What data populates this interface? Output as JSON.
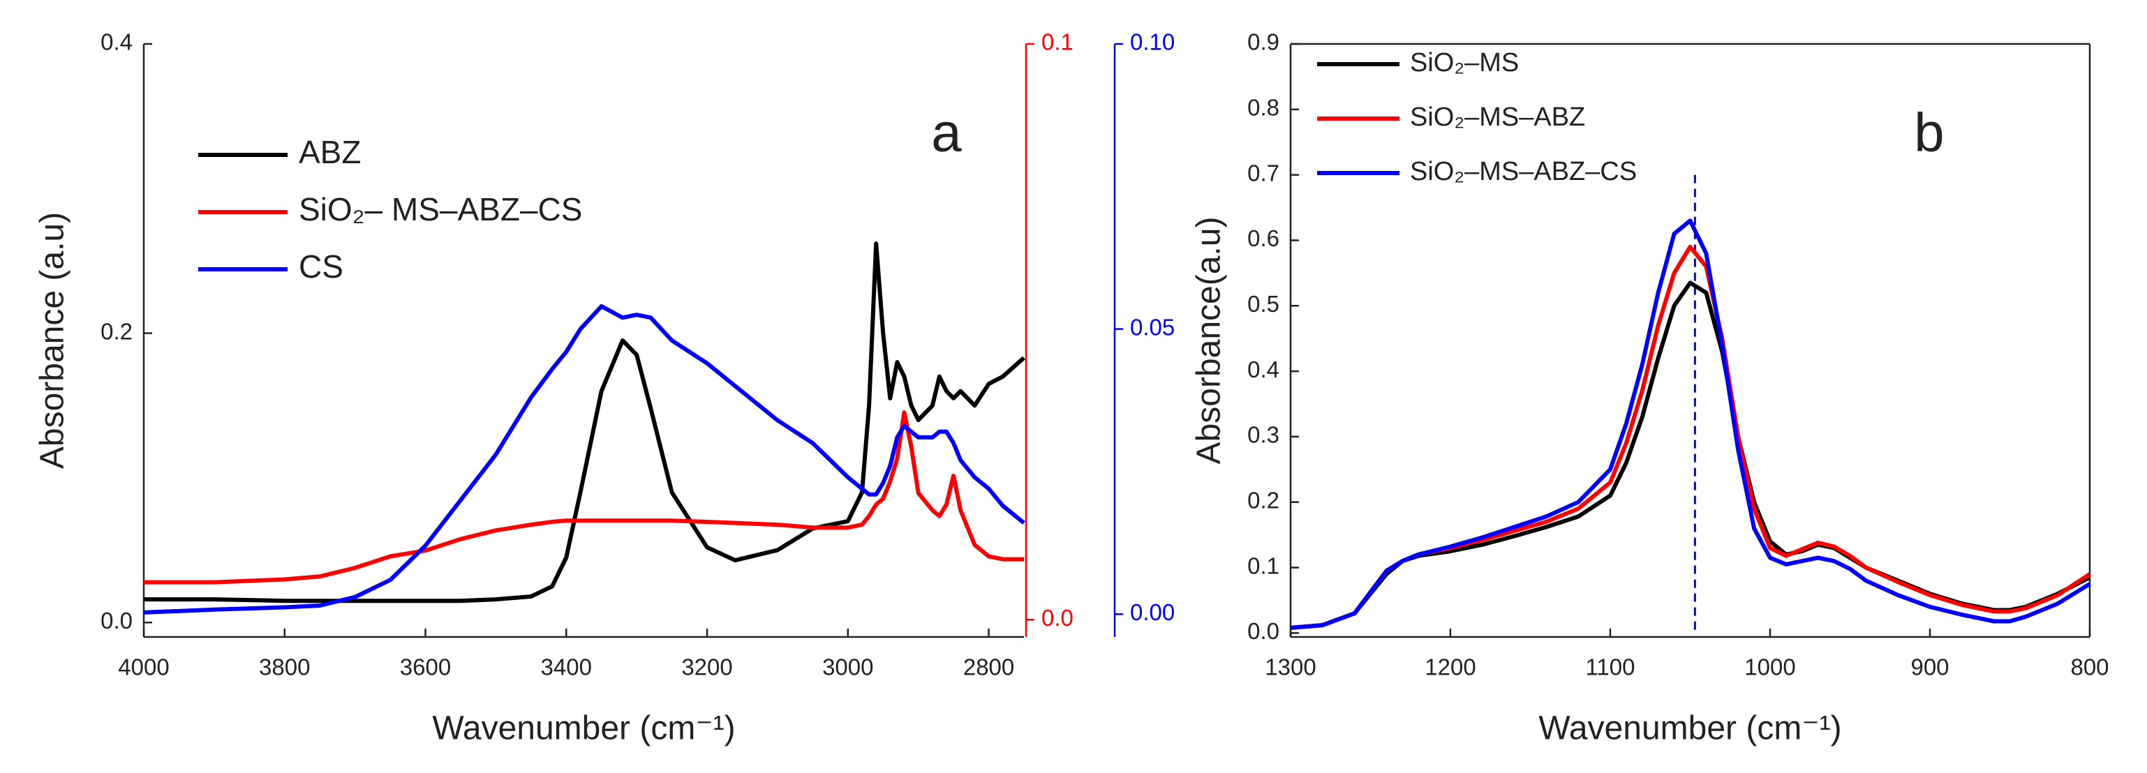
{
  "chart_data": [
    {
      "type": "line",
      "label": "a",
      "xlabel": "Wavenumber (cm⁻¹)",
      "ylabel": "Absorbance (a.u)",
      "xlim": [
        4000,
        2750
      ],
      "xticks": [
        4000,
        3800,
        3600,
        3400,
        3200,
        3000,
        2800
      ],
      "ylim": [
        -0.01,
        0.4
      ],
      "yticks": [
        {
          "value": 0,
          "label": "0.0"
        },
        0.2,
        0.4
      ],
      "y2lim": [
        -0.003,
        0.1
      ],
      "y2ticks": [
        {
          "value": 0,
          "label": "0.0"
        },
        0.1
      ],
      "y3lim": [
        -0.004,
        0.1
      ],
      "y3ticks": [
        {
          "value": 0,
          "label": "0.00"
        },
        0.05,
        {
          "value": 0.1,
          "label": "0.10"
        }
      ],
      "x": [
        4000,
        3900,
        3800,
        3750,
        3700,
        3650,
        3600,
        3550,
        3500,
        3450,
        3420,
        3400,
        3380,
        3350,
        3320,
        3300,
        3280,
        3250,
        3200,
        3160,
        3100,
        3050,
        3000,
        2980,
        2970,
        2960,
        2950,
        2940,
        2930,
        2920,
        2910,
        2900,
        2880,
        2870,
        2860,
        2850,
        2840,
        2820,
        2800,
        2780,
        2750
      ],
      "series": [
        {
          "name": "ABZ",
          "color": "#000000",
          "values": [
            0.016,
            0.016,
            0.015,
            0.015,
            0.015,
            0.015,
            0.015,
            0.015,
            0.016,
            0.018,
            0.025,
            0.045,
            0.09,
            0.16,
            0.195,
            0.185,
            0.148,
            0.09,
            0.052,
            0.043,
            0.05,
            0.065,
            0.07,
            0.09,
            0.15,
            0.262,
            0.2,
            0.155,
            0.18,
            0.17,
            0.15,
            0.14,
            0.15,
            0.17,
            0.16,
            0.155,
            0.16,
            0.15,
            0.165,
            0.17,
            0.183
          ]
        },
        {
          "name": "SiO₂– MS–ABZ–CS",
          "color": "#ff0000",
          "axis": "y2",
          "values": [
            0.0065,
            0.0065,
            0.007,
            0.0075,
            0.009,
            0.011,
            0.012,
            0.014,
            0.0155,
            0.0165,
            0.017,
            0.0172,
            0.0172,
            0.0172,
            0.0172,
            0.0172,
            0.0172,
            0.0172,
            0.017,
            0.0168,
            0.0165,
            0.016,
            0.016,
            0.0165,
            0.018,
            0.02,
            0.021,
            0.024,
            0.028,
            0.036,
            0.03,
            0.022,
            0.019,
            0.018,
            0.02,
            0.025,
            0.019,
            0.013,
            0.011,
            0.0105,
            0.0105
          ]
        },
        {
          "name": "CS",
          "color": "#0000ff",
          "axis": "y3",
          "values": [
            0.0003,
            0.0008,
            0.0012,
            0.0015,
            0.003,
            0.006,
            0.012,
            0.02,
            0.028,
            0.038,
            0.043,
            0.046,
            0.05,
            0.054,
            0.052,
            0.0525,
            0.052,
            0.048,
            0.044,
            0.04,
            0.034,
            0.03,
            0.024,
            0.022,
            0.021,
            0.021,
            0.023,
            0.026,
            0.031,
            0.033,
            0.032,
            0.031,
            0.031,
            0.032,
            0.032,
            0.03,
            0.027,
            0.024,
            0.022,
            0.019,
            0.016
          ]
        }
      ]
    },
    {
      "type": "line",
      "label": "b",
      "xlabel": "Wavenumber (cm⁻¹)",
      "ylabel": "Absorbance(a.u)",
      "xlim": [
        1300,
        800
      ],
      "xticks": [
        1300,
        1200,
        1100,
        1000,
        900,
        800
      ],
      "ylim": [
        -0.006,
        0.9
      ],
      "yticks": [
        {
          "value": 0,
          "label": "0.0"
        },
        0.1,
        0.2,
        0.3,
        0.4,
        0.5,
        0.6,
        0.7,
        0.8,
        0.9
      ],
      "box": true,
      "marker_line": {
        "x": 1047,
        "y0": 0,
        "y1": 0.7,
        "color": "#0000ff"
      },
      "x": [
        1300,
        1280,
        1260,
        1240,
        1230,
        1220,
        1200,
        1180,
        1160,
        1140,
        1120,
        1100,
        1090,
        1080,
        1070,
        1060,
        1050,
        1040,
        1030,
        1020,
        1010,
        1000,
        990,
        980,
        970,
        960,
        950,
        940,
        920,
        900,
        880,
        860,
        850,
        840,
        820,
        800
      ],
      "series": [
        {
          "name": "SiO₂–MS",
          "color": "#000000",
          "values": [
            0.008,
            0.012,
            0.03,
            0.09,
            0.11,
            0.118,
            0.125,
            0.135,
            0.148,
            0.162,
            0.178,
            0.21,
            0.26,
            0.33,
            0.42,
            0.5,
            0.535,
            0.52,
            0.43,
            0.3,
            0.2,
            0.14,
            0.12,
            0.125,
            0.135,
            0.13,
            0.115,
            0.1,
            0.08,
            0.06,
            0.045,
            0.035,
            0.035,
            0.04,
            0.06,
            0.085
          ]
        },
        {
          "name": "SiO₂–MS–ABZ",
          "color": "#ff0000",
          "values": [
            0.008,
            0.012,
            0.03,
            0.095,
            0.11,
            0.12,
            0.13,
            0.142,
            0.156,
            0.17,
            0.19,
            0.23,
            0.29,
            0.37,
            0.47,
            0.55,
            0.59,
            0.56,
            0.45,
            0.3,
            0.19,
            0.13,
            0.118,
            0.128,
            0.138,
            0.132,
            0.118,
            0.1,
            0.078,
            0.058,
            0.043,
            0.033,
            0.033,
            0.038,
            0.058,
            0.09
          ]
        },
        {
          "name": "SiO₂–MS–ABZ–CS",
          "color": "#0000ff",
          "values": [
            0.008,
            0.012,
            0.03,
            0.095,
            0.11,
            0.12,
            0.132,
            0.146,
            0.162,
            0.178,
            0.2,
            0.25,
            0.32,
            0.41,
            0.52,
            0.61,
            0.63,
            0.58,
            0.44,
            0.28,
            0.16,
            0.115,
            0.105,
            0.11,
            0.115,
            0.11,
            0.098,
            0.08,
            0.058,
            0.04,
            0.028,
            0.018,
            0.018,
            0.025,
            0.045,
            0.075
          ]
        }
      ]
    }
  ]
}
